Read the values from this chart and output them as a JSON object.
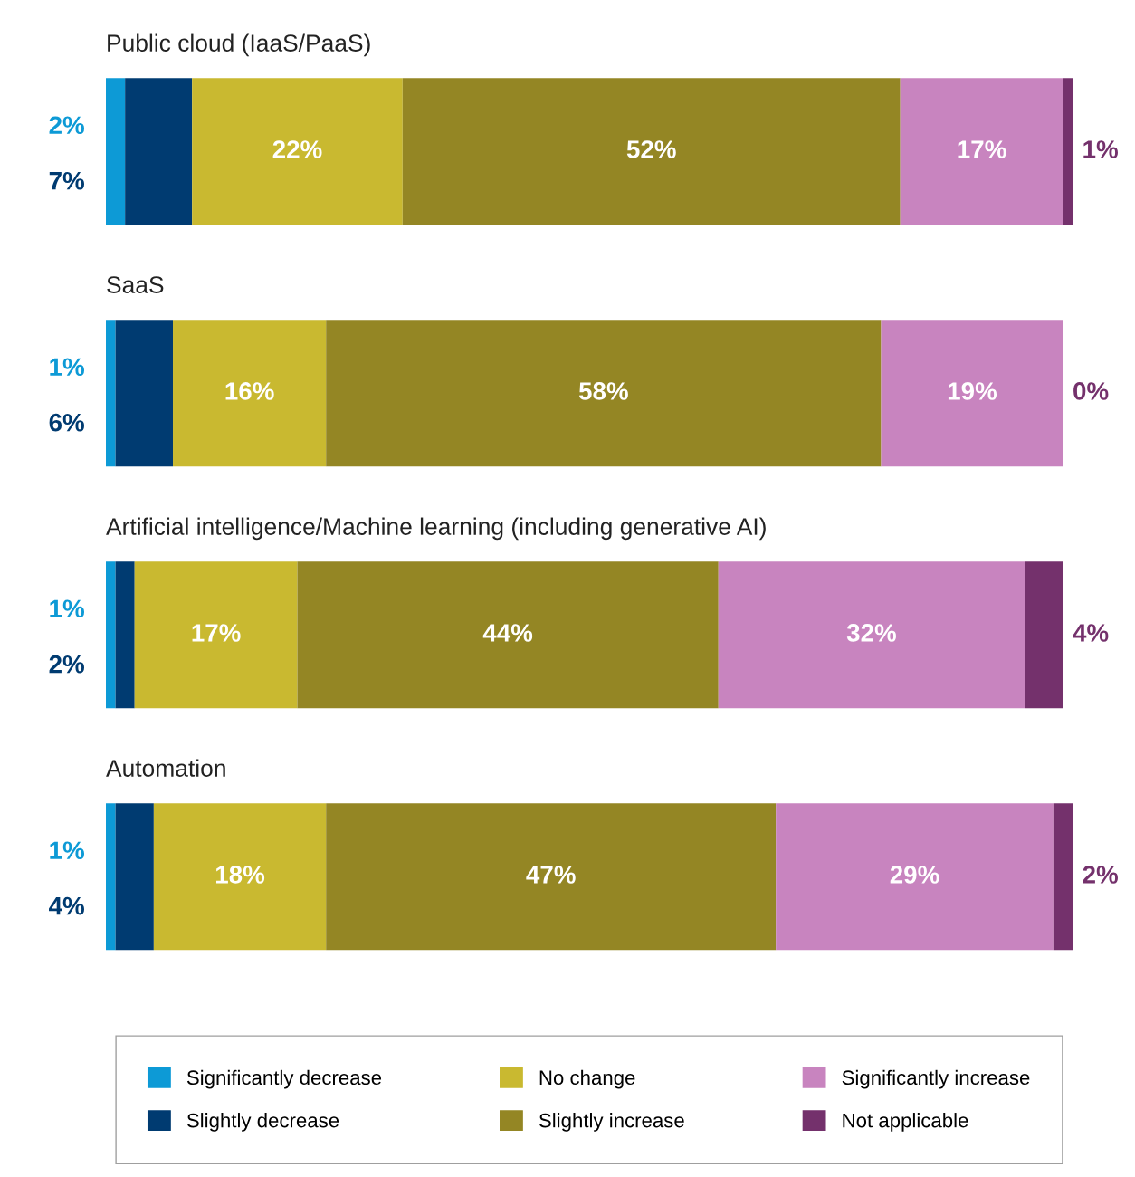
{
  "chart_data": {
    "type": "bar",
    "orientation": "horizontal",
    "stacked": true,
    "legend": "bottom",
    "categories": [
      "Public cloud (IaaS/PaaS)",
      "SaaS",
      "Artificial intelligence/Machine learning (including generative AI)",
      "Automation"
    ],
    "series": [
      {
        "name": "Significantly decrease",
        "color": "#0d9ad6",
        "values": [
          2,
          1,
          1,
          1
        ],
        "value_labels": [
          "2%",
          "1%",
          "1%",
          "1%"
        ]
      },
      {
        "name": "Slightly decrease",
        "color": "#003b71",
        "values": [
          7,
          6,
          2,
          4
        ],
        "value_labels": [
          "7%",
          "6%",
          "2%",
          "4%"
        ]
      },
      {
        "name": "No change",
        "color": "#c9b930",
        "values": [
          22,
          16,
          17,
          18
        ],
        "value_labels": [
          "22%",
          "16%",
          "17%",
          "18%"
        ]
      },
      {
        "name": "Slightly increase",
        "color": "#948624",
        "values": [
          52,
          58,
          44,
          47
        ],
        "value_labels": [
          "52%",
          "58%",
          "44%",
          "47%"
        ]
      },
      {
        "name": "Significantly increase",
        "color": "#c884bf",
        "values": [
          17,
          19,
          32,
          29
        ],
        "value_labels": [
          "17%",
          "19%",
          "32%",
          "29%"
        ]
      },
      {
        "name": "Not applicable",
        "color": "#74316c",
        "values": [
          1,
          0,
          4,
          2
        ],
        "value_labels": [
          "1%",
          "0%",
          "4%",
          "2%"
        ]
      }
    ]
  }
}
